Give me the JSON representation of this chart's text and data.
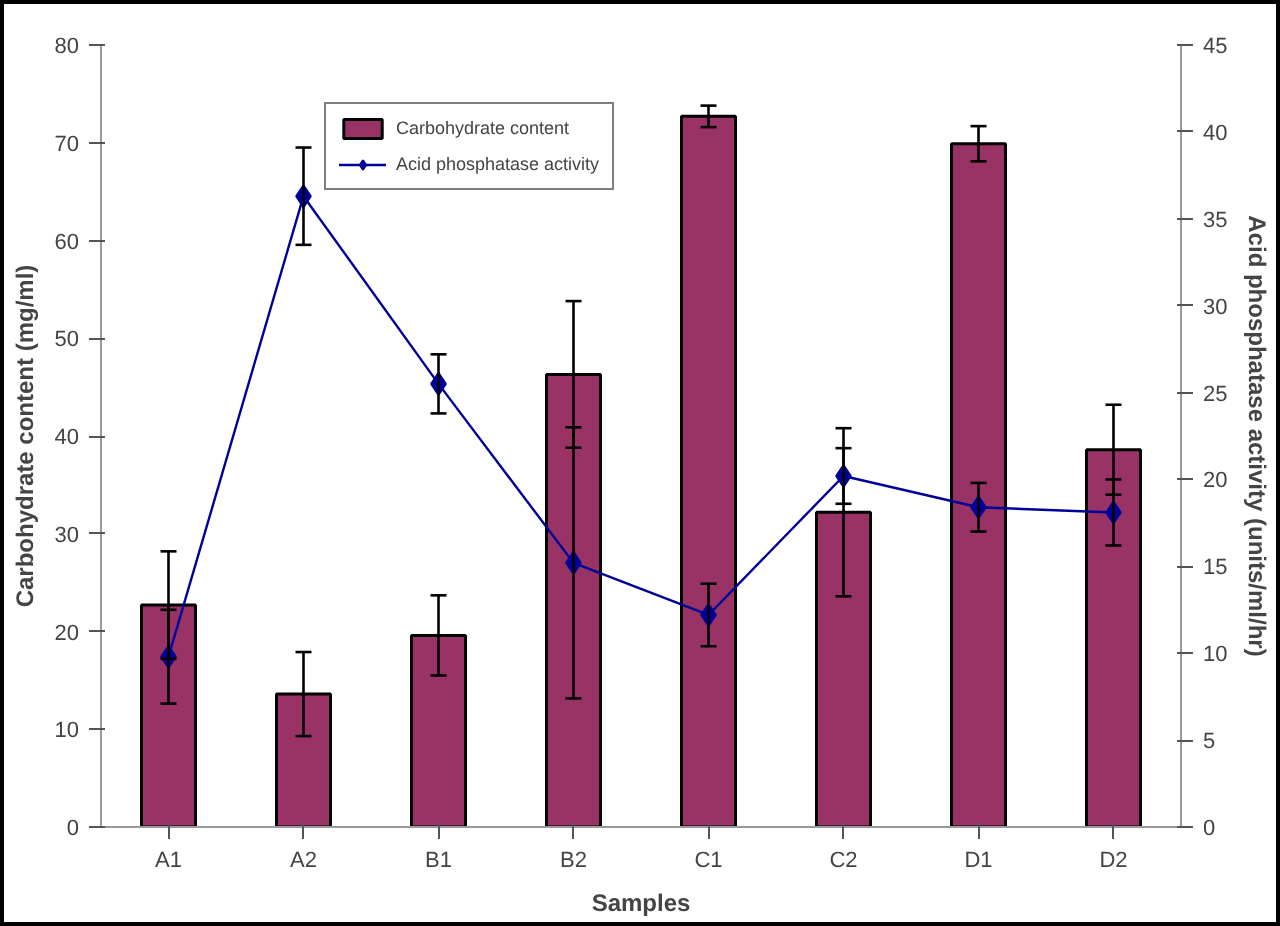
{
  "chart_data": {
    "type": "bar",
    "xlabel": "Samples",
    "ylabel": "Carbohydrate content (mg/ml)",
    "y2label": "Acid phosphatase activity (units/ml/hr)",
    "categories": [
      "A1",
      "A2",
      "B1",
      "B2",
      "C1",
      "C2",
      "D1",
      "D2"
    ],
    "series": [
      {
        "name": "Carbohydrate content",
        "color": "#993366",
        "values": [
          22.7,
          13.6,
          19.6,
          46.3,
          72.7,
          32.2,
          69.9,
          38.6
        ],
        "errors": [
          5.5,
          4.3,
          4.1,
          7.5,
          1.1,
          8.6,
          1.8,
          4.6
        ]
      },
      {
        "name": "Acid phosphatase activity",
        "type": "line",
        "axis": "y2",
        "color": "#000099",
        "marker": "diamond",
        "values": [
          9.8,
          36.3,
          25.5,
          15.2,
          12.2,
          20.2,
          18.4,
          18.1
        ],
        "errors": [
          2.7,
          2.8,
          1.7,
          7.8,
          1.8,
          1.6,
          1.4,
          1.9
        ]
      }
    ],
    "ylim": [
      0,
      80
    ],
    "yticks": [
      0,
      10,
      20,
      30,
      40,
      50,
      60,
      70,
      80
    ],
    "y2lim": [
      0,
      45
    ],
    "y2ticks": [
      0,
      5,
      10,
      15,
      20,
      25,
      30,
      35,
      40,
      45
    ],
    "legend": "top",
    "grid": false
  }
}
